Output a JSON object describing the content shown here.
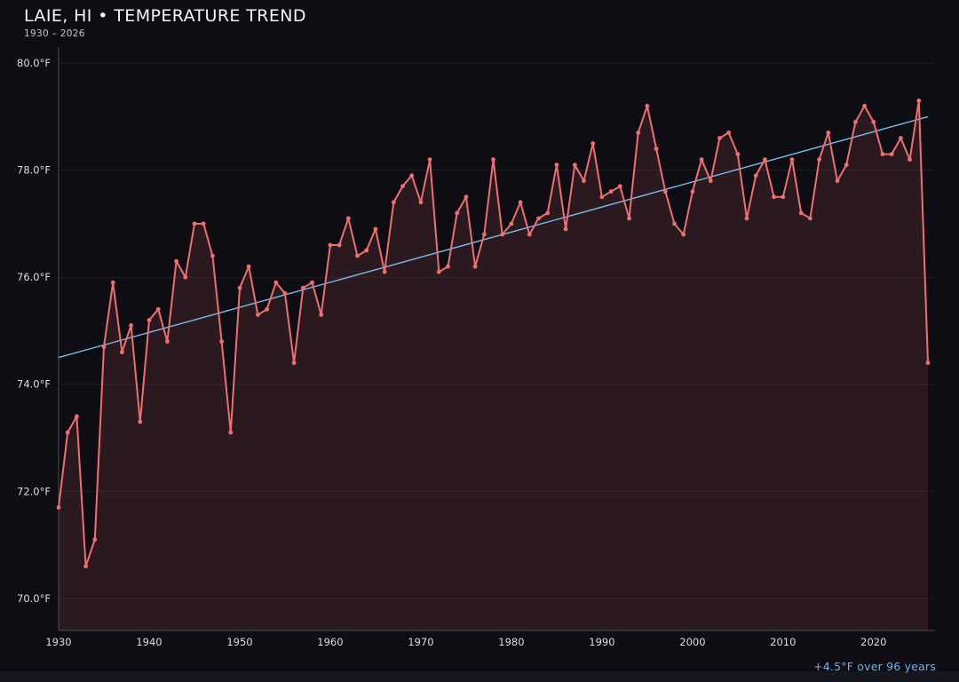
{
  "header": {
    "title": "LAIE, HI • TEMPERATURE TREND",
    "subtitle": "1930 – 2026"
  },
  "footer": {
    "trend_label": "+4.5°F over 96 years"
  },
  "colors": {
    "background": "#0d0d13",
    "line": "#ef6f6f",
    "fill": "rgba(239,111,111,0.13)",
    "trend": "#7bb9e8",
    "grid": "rgba(255,255,255,0.07)",
    "axis": "#4a4a55",
    "axis_text": "#dcdce2",
    "title_text": "#f5f5f7",
    "trend_text": "#6fb1e6"
  },
  "chart_data": {
    "type": "line",
    "title": "LAIE, HI • TEMPERATURE TREND",
    "subtitle": "1930 – 2026",
    "xlabel": "",
    "ylabel": "",
    "x_start": 1930,
    "x_end": 2026,
    "ylim": [
      69.4,
      80.3
    ],
    "grid": true,
    "y_ticks": [
      70.0,
      72.0,
      74.0,
      76.0,
      78.0,
      80.0
    ],
    "y_tick_labels": [
      "70.0°F",
      "72.0°F",
      "74.0°F",
      "76.0°F",
      "78.0°F",
      "80.0°F"
    ],
    "x_ticks": [
      1930,
      1940,
      1950,
      1960,
      1970,
      1980,
      1990,
      2000,
      2010,
      2020
    ],
    "series": [
      {
        "name": "annual-mean-temperature",
        "values": [
          71.7,
          73.1,
          73.4,
          70.6,
          71.1,
          74.7,
          75.9,
          74.6,
          75.1,
          73.3,
          75.2,
          75.4,
          74.8,
          76.3,
          76.0,
          77.0,
          77.0,
          76.4,
          74.8,
          73.1,
          75.8,
          76.2,
          75.3,
          75.4,
          75.9,
          75.7,
          74.4,
          75.8,
          75.9,
          75.3,
          76.6,
          76.6,
          77.1,
          76.4,
          76.5,
          76.9,
          76.1,
          77.4,
          77.7,
          77.9,
          77.4,
          78.2,
          76.1,
          76.2,
          77.2,
          77.5,
          76.2,
          76.8,
          78.2,
          76.8,
          77.0,
          77.4,
          76.8,
          77.1,
          77.2,
          78.1,
          76.9,
          78.1,
          77.8,
          78.5,
          77.5,
          77.6,
          77.7,
          77.1,
          78.7,
          79.2,
          78.4,
          77.6,
          77.0,
          76.8,
          77.6,
          78.2,
          77.8,
          78.6,
          78.7,
          78.3,
          77.1,
          77.9,
          78.2,
          77.5,
          77.5,
          78.2,
          77.2,
          77.1,
          78.2,
          78.7,
          77.8,
          78.1,
          78.9,
          79.2,
          78.9,
          78.3,
          78.3,
          78.6,
          78.2,
          79.3,
          74.4
        ]
      }
    ],
    "trend": {
      "start_year": 1930,
      "start_value": 74.5,
      "end_year": 2026,
      "end_value": 79.0,
      "label": "+4.5°F over 96 years"
    }
  }
}
